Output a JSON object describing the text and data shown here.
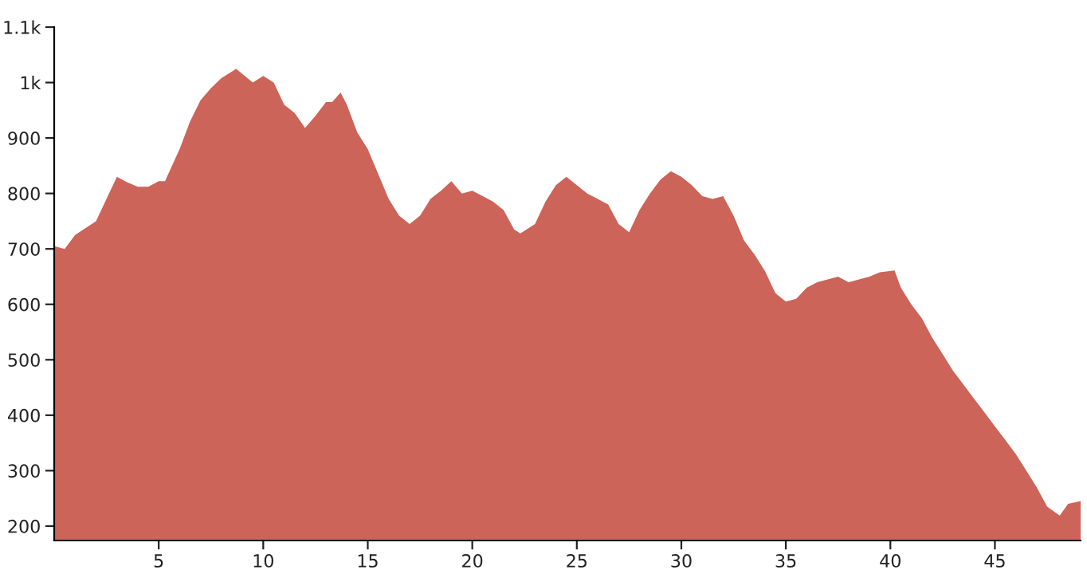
{
  "chart_data": {
    "type": "area",
    "xlim": [
      0,
      49.1
    ],
    "ylim": [
      174,
      1100
    ],
    "xticks": [
      5,
      10,
      15,
      20,
      25,
      30,
      35,
      40,
      45
    ],
    "yticks": [
      200,
      300,
      400,
      500,
      600,
      700,
      800,
      900,
      {
        "value": 1000,
        "label": "1k"
      },
      {
        "value": 1100,
        "label": "1.1k"
      }
    ],
    "grid": false,
    "legend": false,
    "x": [
      0,
      0.5,
      1,
      2,
      3,
      3.5,
      4,
      4.5,
      5,
      5.3,
      6,
      6.5,
      7,
      7.5,
      8,
      8.5,
      8.7,
      9.5,
      10,
      10.5,
      11,
      11.5,
      12,
      12.5,
      13,
      13.3,
      13.7,
      14,
      14.5,
      15,
      15.5,
      16,
      16.5,
      17,
      17.5,
      18,
      18.5,
      19,
      19.5,
      20,
      20.5,
      21,
      21.5,
      22,
      22.3,
      23,
      23.5,
      24,
      24.5,
      25,
      25.5,
      26,
      26.5,
      27,
      27.5,
      28,
      28.5,
      29,
      29.5,
      30,
      30.5,
      31,
      31.5,
      32,
      32.5,
      33,
      33.5,
      34,
      34.5,
      35,
      35.5,
      36,
      36.5,
      37,
      37.5,
      38,
      38.5,
      39,
      39.5,
      40.2,
      40.5,
      41,
      41.5,
      42,
      42.5,
      43,
      43.5,
      44,
      44.5,
      45,
      45.5,
      46,
      46.5,
      47,
      47.5,
      48.1,
      48.5,
      49.1
    ],
    "series": [
      {
        "color": "#cd6459",
        "values": [
          705,
          700,
          725,
          750,
          830,
          820,
          812,
          812,
          822,
          822,
          880,
          930,
          968,
          990,
          1008,
          1020,
          1025,
          1000,
          1012,
          1000,
          960,
          945,
          918,
          940,
          965,
          965,
          982,
          960,
          910,
          880,
          835,
          790,
          760,
          745,
          760,
          790,
          805,
          822,
          800,
          805,
          795,
          785,
          770,
          735,
          728,
          745,
          785,
          815,
          830,
          815,
          800,
          790,
          780,
          745,
          730,
          770,
          800,
          825,
          840,
          830,
          815,
          795,
          790,
          795,
          760,
          715,
          690,
          660,
          620,
          605,
          610,
          630,
          640,
          645,
          650,
          640,
          645,
          650,
          658,
          661,
          630,
          600,
          575,
          540,
          510,
          480,
          455,
          430,
          405,
          380,
          355,
          330,
          300,
          270,
          235,
          219,
          240,
          245
        ]
      }
    ]
  }
}
